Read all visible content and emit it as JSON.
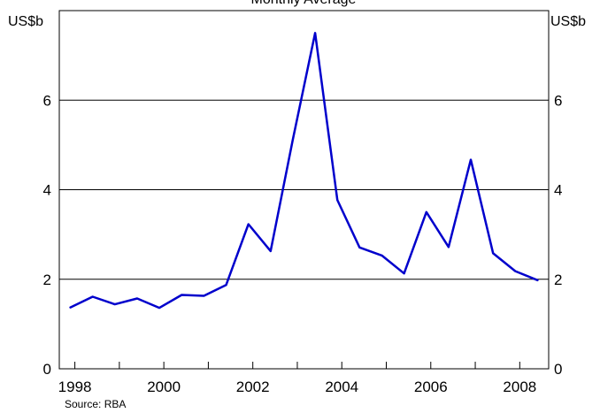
{
  "chart_data": {
    "type": "line",
    "title": "Monthly Average",
    "source": "Source: RBA",
    "y_unit_left": "US$b",
    "y_unit_right": "US$b",
    "ylim": [
      0,
      8
    ],
    "xlim": [
      1997.65,
      2008.65
    ],
    "y_ticks": [
      0,
      2,
      4,
      6
    ],
    "x_ticks": [
      1998,
      2000,
      2002,
      2004,
      2006,
      2008
    ],
    "x_tick_labels": [
      "1998",
      "2000",
      "2002",
      "2004",
      "2006",
      "2008"
    ],
    "grid": true,
    "series": [
      {
        "color": "#0000cc",
        "x": [
          1997.9,
          1998.4,
          1998.9,
          1999.4,
          1999.9,
          2000.4,
          2000.9,
          2001.4,
          2001.9,
          2002.4,
          2002.9,
          2003.4,
          2003.9,
          2004.4,
          2004.9,
          2005.4,
          2005.9,
          2006.4,
          2006.9,
          2007.4,
          2007.9,
          2008.4
        ],
        "values": [
          1.37,
          1.61,
          1.44,
          1.57,
          1.36,
          1.65,
          1.63,
          1.87,
          3.23,
          2.63,
          5.12,
          7.5,
          3.77,
          2.71,
          2.53,
          2.13,
          3.5,
          2.72,
          4.67,
          2.58,
          2.18,
          1.98
        ]
      }
    ]
  }
}
